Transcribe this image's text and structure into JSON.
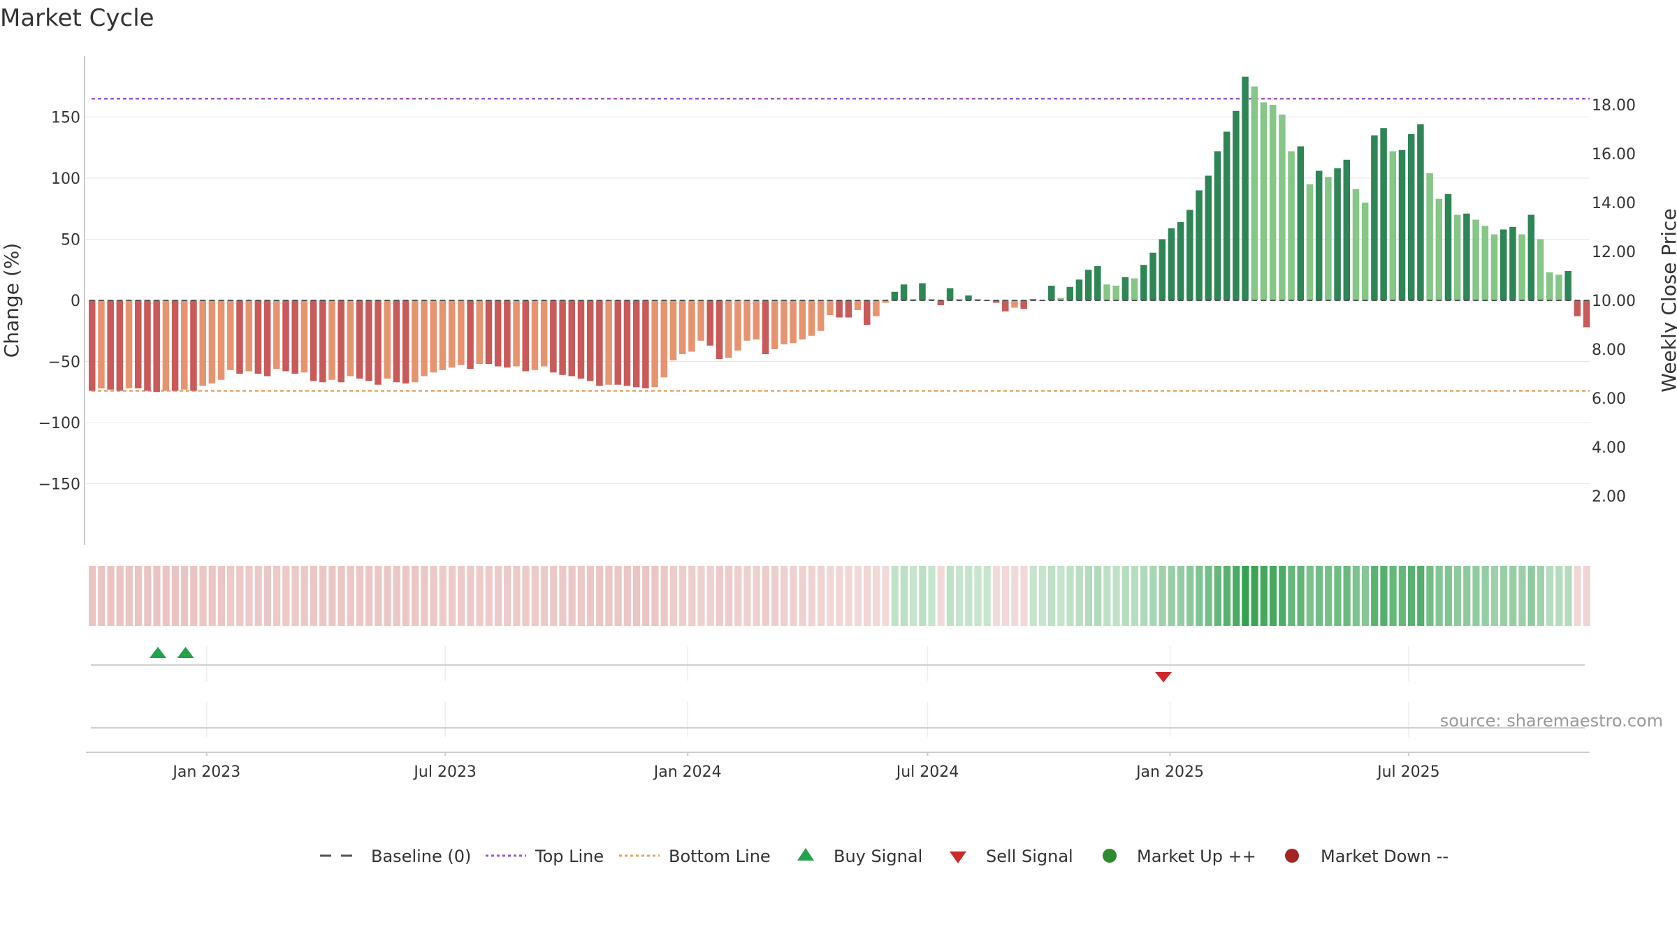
{
  "chart_data": {
    "type": "bar",
    "title": "Market Cycle",
    "ylabel": "Change (%)",
    "y2label": "Weekly Close Price",
    "ylim": [
      -200,
      200
    ],
    "y_ticks": [
      -150,
      -100,
      -50,
      0,
      50,
      100,
      150
    ],
    "y_tick_labels": [
      "−150",
      "−100",
      "−50",
      "0",
      "50",
      "100",
      "150"
    ],
    "y2lim": [
      0,
      20
    ],
    "y2_ticks": [
      2,
      4,
      6,
      8,
      10,
      12,
      14,
      16,
      18
    ],
    "y2_tick_labels": [
      "2.00",
      "4.00",
      "6.00",
      "8.00",
      "10.00",
      "12.00",
      "14.00",
      "16.00",
      "18.00"
    ],
    "top_line": 165,
    "bottom_line": -74,
    "first_week": "2022-10-07",
    "x_ticks": [
      {
        "date": "2023-01-01",
        "label": "Jan 2023"
      },
      {
        "date": "2023-07-01",
        "label": "Jul 2023"
      },
      {
        "date": "2024-01-01",
        "label": "Jan 2024"
      },
      {
        "date": "2024-07-01",
        "label": "Jul 2024"
      },
      {
        "date": "2025-01-01",
        "label": "Jan 2025"
      },
      {
        "date": "2025-07-01",
        "label": "Jul 2025"
      }
    ],
    "values": [
      -74,
      -72,
      -73,
      -74,
      -72,
      -72,
      -74,
      -75,
      -74,
      -74,
      -73,
      -74,
      -70,
      -68,
      -65,
      -57,
      -60,
      -58,
      -60,
      -62,
      -56,
      -58,
      -60,
      -59,
      -66,
      -67,
      -65,
      -67,
      -62,
      -64,
      -66,
      -69,
      -64,
      -67,
      -68,
      -67,
      -62,
      -59,
      -57,
      -55,
      -53,
      -56,
      -52,
      -52,
      -54,
      -55,
      -54,
      -58,
      -57,
      -54,
      -59,
      -61,
      -62,
      -64,
      -66,
      -70,
      -69,
      -69,
      -70,
      -71,
      -72,
      -71,
      -63,
      -49,
      -44,
      -42,
      -33,
      -37,
      -48,
      -47,
      -41,
      -33,
      -32,
      -44,
      -40,
      -36,
      -35,
      -32,
      -29,
      -25,
      -12,
      -14,
      -14,
      -8,
      -20,
      -13,
      -2,
      7,
      13,
      1,
      14,
      1,
      -4,
      10,
      1,
      4,
      1,
      0,
      -2,
      -9,
      -6,
      -7,
      1,
      0,
      12,
      2,
      11,
      17,
      25,
      28,
      13,
      12,
      19,
      18,
      29,
      39,
      50,
      59,
      64,
      74,
      90,
      102,
      122,
      138,
      155,
      183,
      175,
      162,
      160,
      152,
      122,
      126,
      95,
      106,
      101,
      108,
      115,
      91,
      80,
      135,
      141,
      122,
      123,
      136,
      144,
      104,
      83,
      87,
      70,
      71,
      66,
      61,
      54,
      58,
      60,
      54,
      70,
      50,
      23,
      21,
      24,
      -13,
      -22
    ],
    "buy_signals": [
      "2022-11-25",
      "2022-12-16"
    ],
    "sell_signals": [
      "2024-12-27"
    ],
    "legend": [
      "Baseline (0)",
      "Top Line",
      "Bottom Line",
      "Buy Signal",
      "Sell Signal",
      "Market Up ++",
      "Market Down --"
    ],
    "colors": {
      "up_strong": "#2e8556",
      "up_light": "#86c687",
      "down_strong": "#c85a5a",
      "down_light": "#e6946f",
      "top_line": "#9a58cc",
      "bottom_line": "#e0a565",
      "baseline": "#555555",
      "buy": "#22a34b",
      "sell": "#cc2a2a",
      "market_up": "#2e8a2e",
      "market_down": "#a52424"
    }
  },
  "source_text": "source: sharemaestro.com"
}
